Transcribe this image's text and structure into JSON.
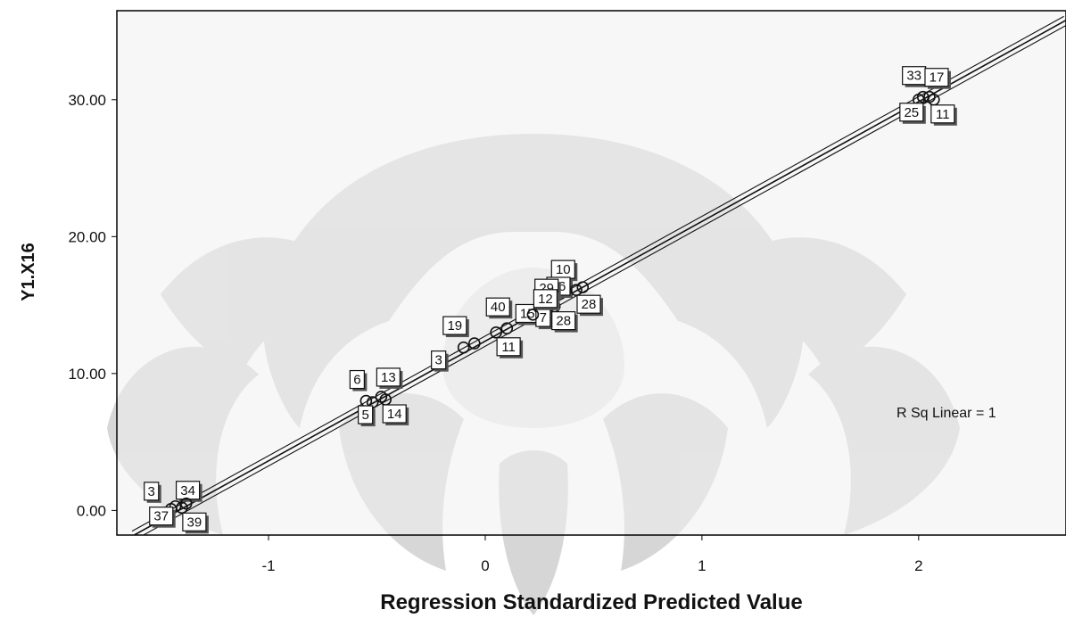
{
  "chart_data": {
    "type": "scatter",
    "title": "",
    "xlabel": "Regression Standardized Predicted Value",
    "ylabel": "Y1.X16",
    "xlim": [
      -1.7,
      2.68
    ],
    "ylim": [
      -1.8,
      36.5
    ],
    "x_ticks": [
      {
        "value": -1,
        "label": "-1"
      },
      {
        "value": 0,
        "label": "0"
      },
      {
        "value": 1,
        "label": "1"
      },
      {
        "value": 2,
        "label": "2"
      }
    ],
    "y_ticks": [
      {
        "value": 0,
        "label": "0.00"
      },
      {
        "value": 10,
        "label": "10.00"
      },
      {
        "value": 20,
        "label": "20.00"
      },
      {
        "value": 30,
        "label": "30.00"
      }
    ],
    "grid": false,
    "points": [
      {
        "label": "33",
        "x": 2.02,
        "y": 30.2
      },
      {
        "label": "17",
        "x": 2.05,
        "y": 30.2
      },
      {
        "label": "25",
        "x": 2.0,
        "y": 30.0
      },
      {
        "label": "11",
        "x": 2.07,
        "y": 30.0
      },
      {
        "label": "10",
        "x": 0.45,
        "y": 16.3
      },
      {
        "label": "16",
        "x": 0.28,
        "y": 15.2
      },
      {
        "label": "15",
        "x": 0.31,
        "y": 15.3
      },
      {
        "label": "28",
        "x": 0.42,
        "y": 16.1
      },
      {
        "label": "40",
        "x": 0.1,
        "y": 13.3
      },
      {
        "label": "29",
        "x": 0.25,
        "y": 14.8
      },
      {
        "label": "7",
        "x": 0.3,
        "y": 15.0
      },
      {
        "label": "28",
        "x": 0.32,
        "y": 14.9
      },
      {
        "label": "19",
        "x": -0.05,
        "y": 12.2
      },
      {
        "label": "12",
        "x": 0.22,
        "y": 14.3
      },
      {
        "label": "3",
        "x": -0.1,
        "y": 11.9
      },
      {
        "label": "11",
        "x": 0.05,
        "y": 13.0
      },
      {
        "label": "6",
        "x": -0.55,
        "y": 8.0
      },
      {
        "label": "13",
        "x": -0.48,
        "y": 8.3
      },
      {
        "label": "5",
        "x": -0.52,
        "y": 7.9
      },
      {
        "label": "14",
        "x": -0.46,
        "y": 8.1
      },
      {
        "label": "3",
        "x": -1.45,
        "y": 0.1
      },
      {
        "label": "34",
        "x": -1.43,
        "y": 0.3
      },
      {
        "label": "37",
        "x": -1.38,
        "y": 0.5
      },
      {
        "label": "39",
        "x": -1.4,
        "y": 0.2
      }
    ],
    "fit_line": {
      "x": [
        -1.62,
        2.68
      ],
      "y": [
        -1.8,
        35.8
      ]
    },
    "annotation": "R Sq Linear = 1"
  }
}
